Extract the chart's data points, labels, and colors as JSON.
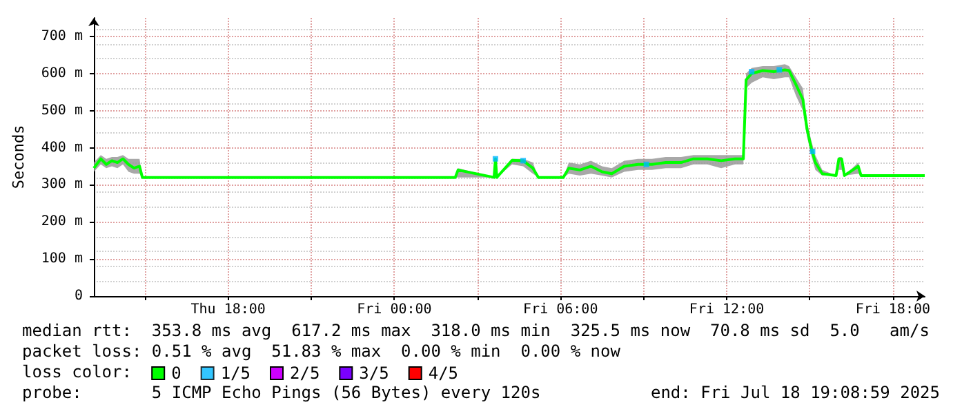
{
  "chart_data": {
    "type": "line",
    "ylabel": "Seconds",
    "legend_title": "loss color:",
    "legend": "bottom",
    "grid": true,
    "xlim": [
      "2025-07-17T13:09",
      "2025-07-18T19:09"
    ],
    "xticks": [
      {
        "value": "2025-07-17T15:00",
        "label": null
      },
      {
        "value": "2025-07-17T18:00",
        "label": "Thu 18:00"
      },
      {
        "value": "2025-07-17T21:00",
        "label": null
      },
      {
        "value": "2025-07-18T00:00",
        "label": "Fri 00:00"
      },
      {
        "value": "2025-07-18T03:00",
        "label": null
      },
      {
        "value": "2025-07-18T06:00",
        "label": "Fri 06:00"
      },
      {
        "value": "2025-07-18T09:00",
        "label": null
      },
      {
        "value": "2025-07-18T12:00",
        "label": "Fri 12:00"
      },
      {
        "value": "2025-07-18T15:00",
        "label": null
      },
      {
        "value": "2025-07-18T18:00",
        "label": "Fri 18:00"
      }
    ],
    "ylim": [
      0,
      750
    ],
    "yticks": [
      0,
      {
        "value": 100,
        "label": "100 m"
      },
      {
        "value": 200,
        "label": "200 m"
      },
      {
        "value": 300,
        "label": "300 m"
      },
      {
        "value": 400,
        "label": "400 m"
      },
      {
        "value": 500,
        "label": "500 m"
      },
      {
        "value": 600,
        "label": "600 m"
      },
      {
        "value": 700,
        "label": "700 m"
      }
    ],
    "series": [
      {
        "name": "0",
        "color": "#00ff00",
        "x": [
          "2025-07-17T13:09",
          "2025-07-17T13:24",
          "2025-07-17T13:36",
          "2025-07-17T13:48",
          "2025-07-17T14:00",
          "2025-07-17T14:12",
          "2025-07-17T14:24",
          "2025-07-17T14:36",
          "2025-07-17T14:48",
          "2025-07-17T14:54",
          "2025-07-17T15:00",
          "2025-07-17T18:00",
          "2025-07-17T21:00",
          "2025-07-18T00:00",
          "2025-07-18T02:12",
          "2025-07-18T02:18",
          "2025-07-18T03:36",
          "2025-07-18T03:39",
          "2025-07-18T03:42",
          "2025-07-18T04:15",
          "2025-07-18T04:39",
          "2025-07-18T05:00",
          "2025-07-18T05:12",
          "2025-07-18T06:06",
          "2025-07-18T06:18",
          "2025-07-18T06:42",
          "2025-07-18T07:06",
          "2025-07-18T07:30",
          "2025-07-18T07:51",
          "2025-07-18T08:18",
          "2025-07-18T08:48",
          "2025-07-18T09:18",
          "2025-07-18T09:48",
          "2025-07-18T10:21",
          "2025-07-18T10:48",
          "2025-07-18T11:18",
          "2025-07-18T11:48",
          "2025-07-18T12:18",
          "2025-07-18T12:36",
          "2025-07-18T12:42",
          "2025-07-18T12:54",
          "2025-07-18T13:18",
          "2025-07-18T13:42",
          "2025-07-18T14:06",
          "2025-07-18T14:15",
          "2025-07-18T14:30",
          "2025-07-18T14:45",
          "2025-07-18T14:54",
          "2025-07-18T15:03",
          "2025-07-18T15:12",
          "2025-07-18T15:27",
          "2025-07-18T15:57",
          "2025-07-18T16:03",
          "2025-07-18T16:09",
          "2025-07-18T16:15",
          "2025-07-18T16:45",
          "2025-07-18T16:51",
          "2025-07-18T19:09"
        ],
        "values": [
          345,
          370,
          355,
          365,
          360,
          370,
          355,
          345,
          350,
          320,
          320,
          320,
          320,
          320,
          320,
          340,
          320,
          370,
          320,
          366,
          365,
          345,
          320,
          320,
          345,
          340,
          350,
          335,
          330,
          350,
          355,
          355,
          360,
          360,
          370,
          370,
          365,
          370,
          370,
          583,
          600,
          608,
          605,
          610,
          608,
          570,
          530,
          450,
          400,
          360,
          330,
          325,
          370,
          370,
          325,
          350,
          325,
          325
        ],
        "lower": [
          335,
          355,
          345,
          350,
          345,
          355,
          335,
          330,
          330,
          320,
          320,
          320,
          320,
          320,
          320,
          320,
          320,
          330,
          320,
          355,
          350,
          330,
          320,
          320,
          330,
          325,
          330,
          325,
          320,
          335,
          340,
          340,
          345,
          345,
          355,
          355,
          345,
          355,
          355,
          560,
          575,
          590,
          585,
          590,
          590,
          540,
          500,
          430,
          380,
          340,
          325,
          325,
          340,
          340,
          325,
          330,
          325,
          325
        ],
        "upper": [
          360,
          380,
          370,
          375,
          375,
          380,
          370,
          370,
          370,
          320,
          320,
          320,
          320,
          320,
          320,
          345,
          320,
          375,
          320,
          370,
          370,
          360,
          320,
          320,
          360,
          355,
          365,
          350,
          345,
          365,
          370,
          370,
          375,
          375,
          380,
          380,
          380,
          380,
          380,
          600,
          615,
          620,
          620,
          625,
          620,
          590,
          560,
          470,
          420,
          380,
          340,
          325,
          375,
          375,
          325,
          360,
          325,
          325
        ]
      },
      {
        "name": "1/5",
        "type": "scatter",
        "marker": "square",
        "color": "#00b8ff",
        "x": [
          "2025-07-18T03:39",
          "2025-07-18T04:39",
          "2025-07-18T09:06",
          "2025-07-18T12:54",
          "2025-07-18T13:54",
          "2025-07-18T15:06"
        ],
        "values": [
          370,
          365,
          355,
          605,
          610,
          390
        ]
      },
      {
        "name": "2/5",
        "color": "#cc00ff"
      },
      {
        "name": "3/5",
        "color": "#7a00ff"
      },
      {
        "name": "4/5",
        "color": "#ff0000"
      }
    ],
    "annotations": [
      "median rtt:  353.8 ms avg  617.2 ms max  318.0 ms min  325.5 ms now  70.8 ms sd  5.0   am/s",
      "packet loss: 0.51 % avg  51.83 % max  0.00 % min  0.00 % now",
      "probe:       5 ICMP Echo Pings (56 Bytes) every 120s",
      "end: Fri Jul 18 19:08:59 2025"
    ]
  }
}
